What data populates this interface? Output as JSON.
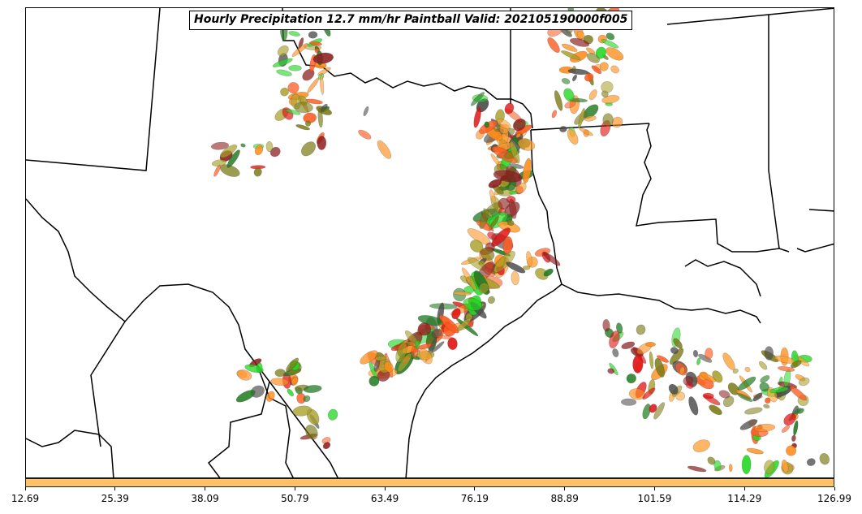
{
  "title": "Hourly Precipitation 12.7 mm/hr Paintball Valid: 202105190000f005",
  "colorbar": {
    "color": "#ffc266",
    "ticks": [
      "12.69",
      "25.39",
      "38.09",
      "50.79",
      "63.49",
      "76.19",
      "88.89",
      "101.59",
      "114.29",
      "126.99"
    ]
  },
  "member_colors": [
    "#ff8c1a",
    "#ff5a1f",
    "#e01010",
    "#ff9e30",
    "#23d823",
    "#7a7a14",
    "#8b1c1c",
    "#1f7a1f",
    "#4a4a4a",
    "#a8a02a"
  ]
}
